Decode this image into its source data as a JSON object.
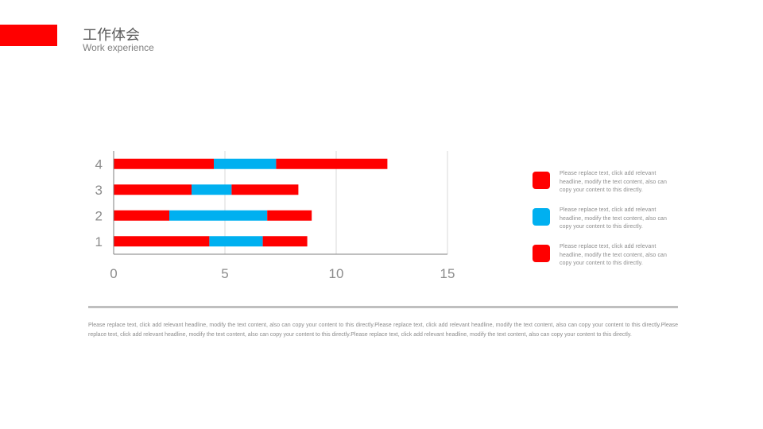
{
  "header": {
    "title": "工作体会",
    "subtitle": "Work experience"
  },
  "colors": {
    "accent": "#ff0000",
    "secondary": "#00b0f0",
    "axis": "#7f7f7f",
    "grid": "#d9d9d9",
    "tick_text": "#8c8c8c"
  },
  "chart_data": {
    "type": "bar",
    "orientation": "horizontal",
    "stacked": true,
    "categories": [
      "1",
      "2",
      "3",
      "4"
    ],
    "series": [
      {
        "values": [
          4.3,
          2.5,
          3.5,
          4.5
        ],
        "color": "#ff0000"
      },
      {
        "values": [
          2.4,
          4.4,
          1.8,
          2.8
        ],
        "color": "#00b0f0"
      },
      {
        "values": [
          2.0,
          2.0,
          3.0,
          5.0
        ],
        "color": "#ff0000"
      }
    ],
    "xlim": [
      0,
      15
    ],
    "xticks": [
      0,
      5,
      10,
      15
    ],
    "grid": "vertical",
    "title": "",
    "xlabel": "",
    "ylabel": ""
  },
  "legend": [
    {
      "color": "#ff0000",
      "text": "Please replace text, click add relevant headline, modify the text content, also can copy your content to this directly."
    },
    {
      "color": "#00b0f0",
      "text": "Please replace text, click add relevant headline, modify the text content, also can copy your content to this directly."
    },
    {
      "color": "#ff0000",
      "text": "Please replace text, click add relevant headline, modify the text content, also can copy your content to this directly."
    }
  ],
  "body_text": "Please replace text, click add relevant headline, modify the text content, also can copy your content to this directly.Please replace text, click add relevant headline, modify the text content, also can copy your content to this directly.Please replace text, click add relevant headline, modify the text content, also can copy your content to this directly.Please replace text, click add relevant headline, modify the text content, also can copy your content to this directly."
}
